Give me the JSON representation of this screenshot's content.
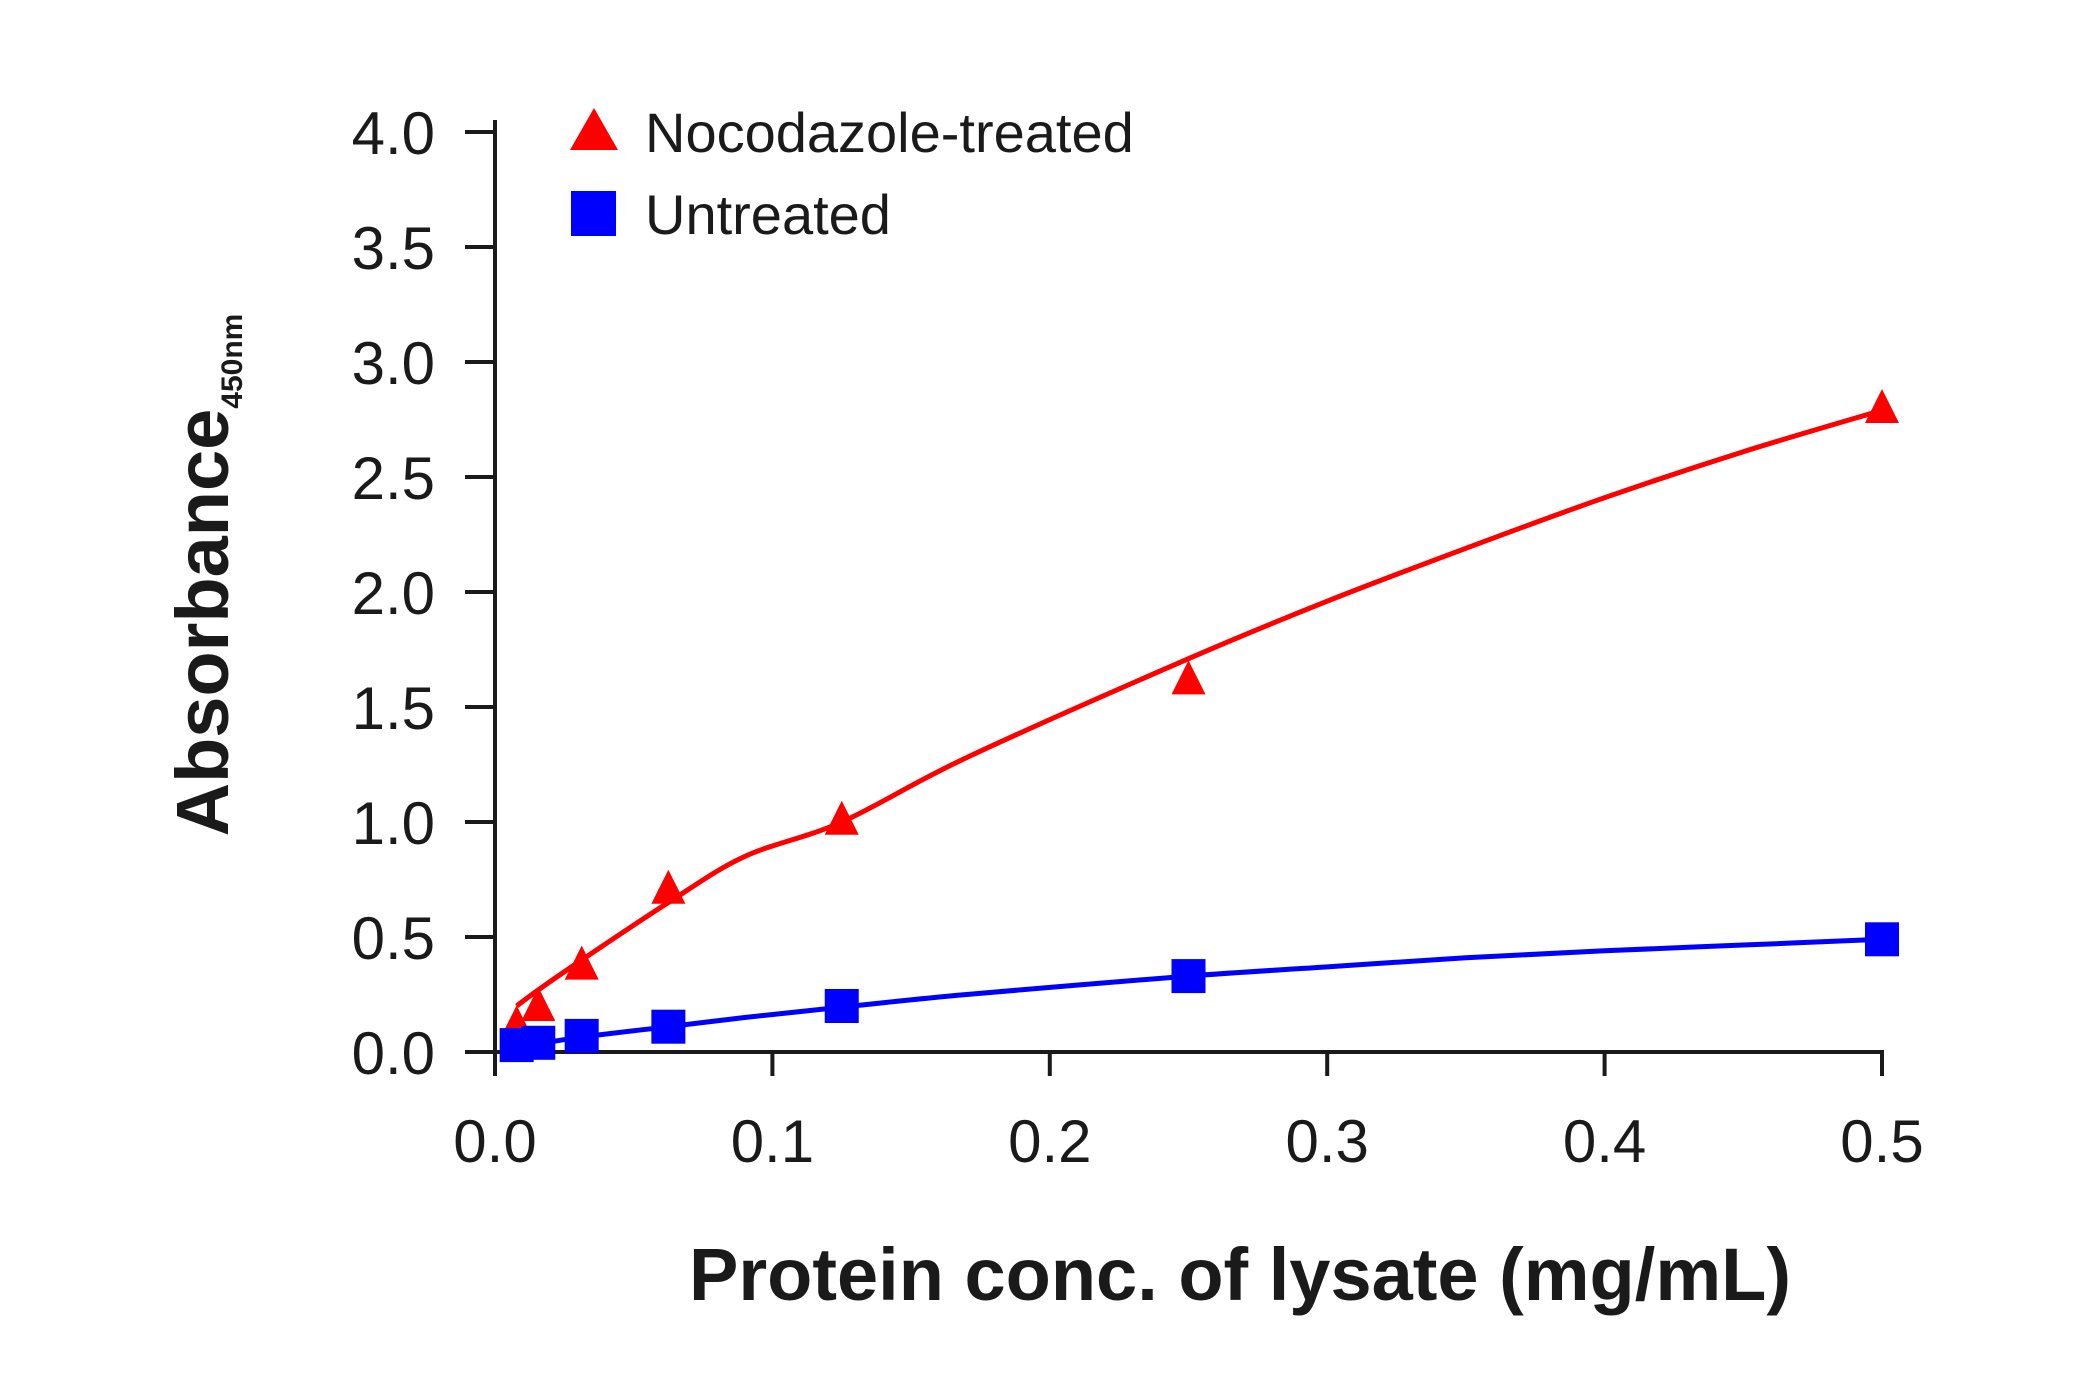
{
  "chart_data": {
    "type": "scatter",
    "title": "",
    "xlabel": "Protein conc. of lysate (mg/mL)",
    "ylabel": "Absorbance",
    "ylabel_subscript": "450nm",
    "xlim": [
      0,
      0.5
    ],
    "ylim": [
      0,
      4.0
    ],
    "xticks": [
      "0.0",
      "0.1",
      "0.2",
      "0.3",
      "0.4",
      "0.5"
    ],
    "yticks": [
      "0.0",
      "0.5",
      "1.0",
      "1.5",
      "2.0",
      "2.5",
      "3.0",
      "3.5",
      "4.0"
    ],
    "grid": false,
    "legend_position": "top-left",
    "series": [
      {
        "name": "Nocodazole-treated",
        "marker": "triangle",
        "color": "#ff0000",
        "x": [
          0.0078,
          0.0156,
          0.03125,
          0.0625,
          0.125,
          0.25,
          0.5
        ],
        "y": [
          0.12,
          0.2,
          0.38,
          0.71,
          1.01,
          1.62,
          2.8
        ],
        "fit_x": [
          0.0078,
          0.0156,
          0.03125,
          0.0625,
          0.09,
          0.125,
          0.17,
          0.25,
          0.3,
          0.35,
          0.4,
          0.45,
          0.5
        ],
        "fit_y": [
          0.2,
          0.27,
          0.4,
          0.65,
          0.85,
          1.0,
          1.28,
          1.71,
          1.96,
          2.19,
          2.41,
          2.61,
          2.79
        ]
      },
      {
        "name": "Untreated",
        "marker": "square",
        "color": "#0000ff",
        "x": [
          0.0078,
          0.0156,
          0.03125,
          0.0625,
          0.125,
          0.25,
          0.5
        ],
        "y": [
          0.03,
          0.04,
          0.07,
          0.11,
          0.2,
          0.33,
          0.49
        ],
        "fit_x": [
          0.0078,
          0.0156,
          0.03125,
          0.0625,
          0.09,
          0.125,
          0.17,
          0.25,
          0.3,
          0.35,
          0.4,
          0.45,
          0.5
        ],
        "fit_y": [
          0.02,
          0.035,
          0.065,
          0.11,
          0.15,
          0.195,
          0.25,
          0.33,
          0.37,
          0.41,
          0.44,
          0.465,
          0.49
        ]
      }
    ]
  }
}
